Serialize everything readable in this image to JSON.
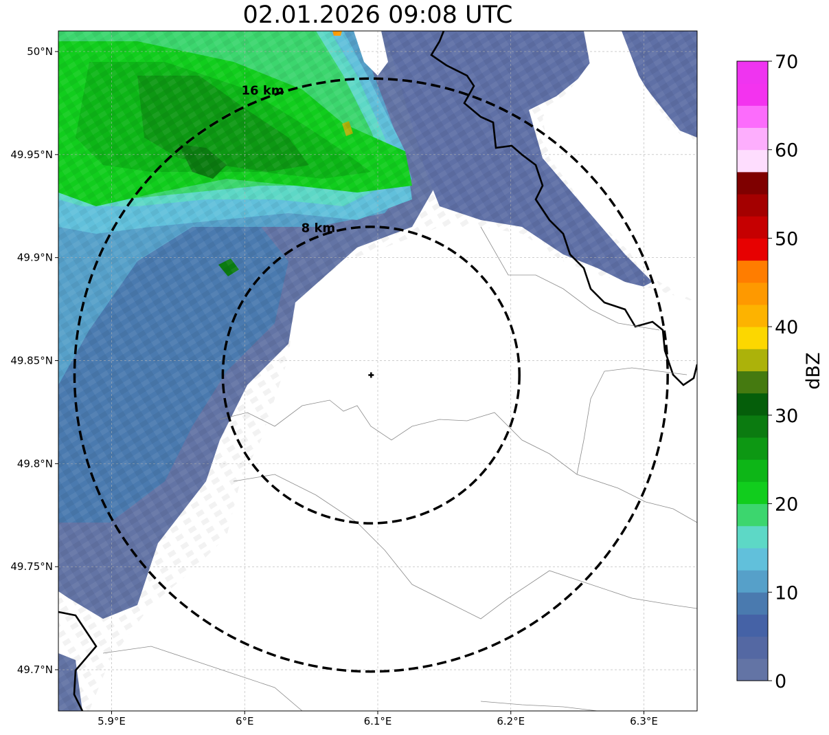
{
  "title": "02.01.2026 09:08 UTC",
  "map": {
    "lon_range": [
      5.86,
      6.34
    ],
    "lat_range": [
      49.68,
      50.01
    ],
    "lon_ticks": [
      {
        "value": 5.9,
        "label": "5.9°E"
      },
      {
        "value": 6.0,
        "label": "6°E"
      },
      {
        "value": 6.1,
        "label": "6.1°E"
      },
      {
        "value": 6.2,
        "label": "6.2°E"
      },
      {
        "value": 6.3,
        "label": "6.3°E"
      }
    ],
    "lat_ticks": [
      {
        "value": 50.0,
        "label": "50°N"
      },
      {
        "value": 49.95,
        "label": "49.95°N"
      },
      {
        "value": 49.9,
        "label": "49.9°N"
      },
      {
        "value": 49.85,
        "label": "49.85°N"
      },
      {
        "value": 49.8,
        "label": "49.8°N"
      },
      {
        "value": 49.75,
        "label": "49.75°N"
      },
      {
        "value": 49.7,
        "label": "49.7°N"
      }
    ],
    "grid": true,
    "radar_center": {
      "lon": 6.095,
      "lat": 49.843
    },
    "range_rings": [
      {
        "label": "8 km",
        "radius_km": 8
      },
      {
        "label": "16 km",
        "radius_km": 16
      }
    ]
  },
  "colorbar": {
    "label": "dBZ",
    "min": 0,
    "max": 70,
    "step": 2.5,
    "ticks": [
      0,
      10,
      20,
      30,
      40,
      50,
      60,
      70
    ],
    "colors": [
      "#6374a5",
      "#5468a3",
      "#4562a6",
      "#4a7aaf",
      "#56a0c9",
      "#61c0db",
      "#5dd8c6",
      "#3cd66e",
      "#11cd1d",
      "#0db617",
      "#0d9813",
      "#0b7b10",
      "#055e0a",
      "#457a10",
      "#acb20a",
      "#fcd700",
      "#fdb300",
      "#fe9900",
      "#ff7d00",
      "#e70101",
      "#c60001",
      "#a40000",
      "#7f0000",
      "#feddfe",
      "#fdaefd",
      "#fc6cfc",
      "#f333ef",
      "#ef34f0"
    ]
  }
}
